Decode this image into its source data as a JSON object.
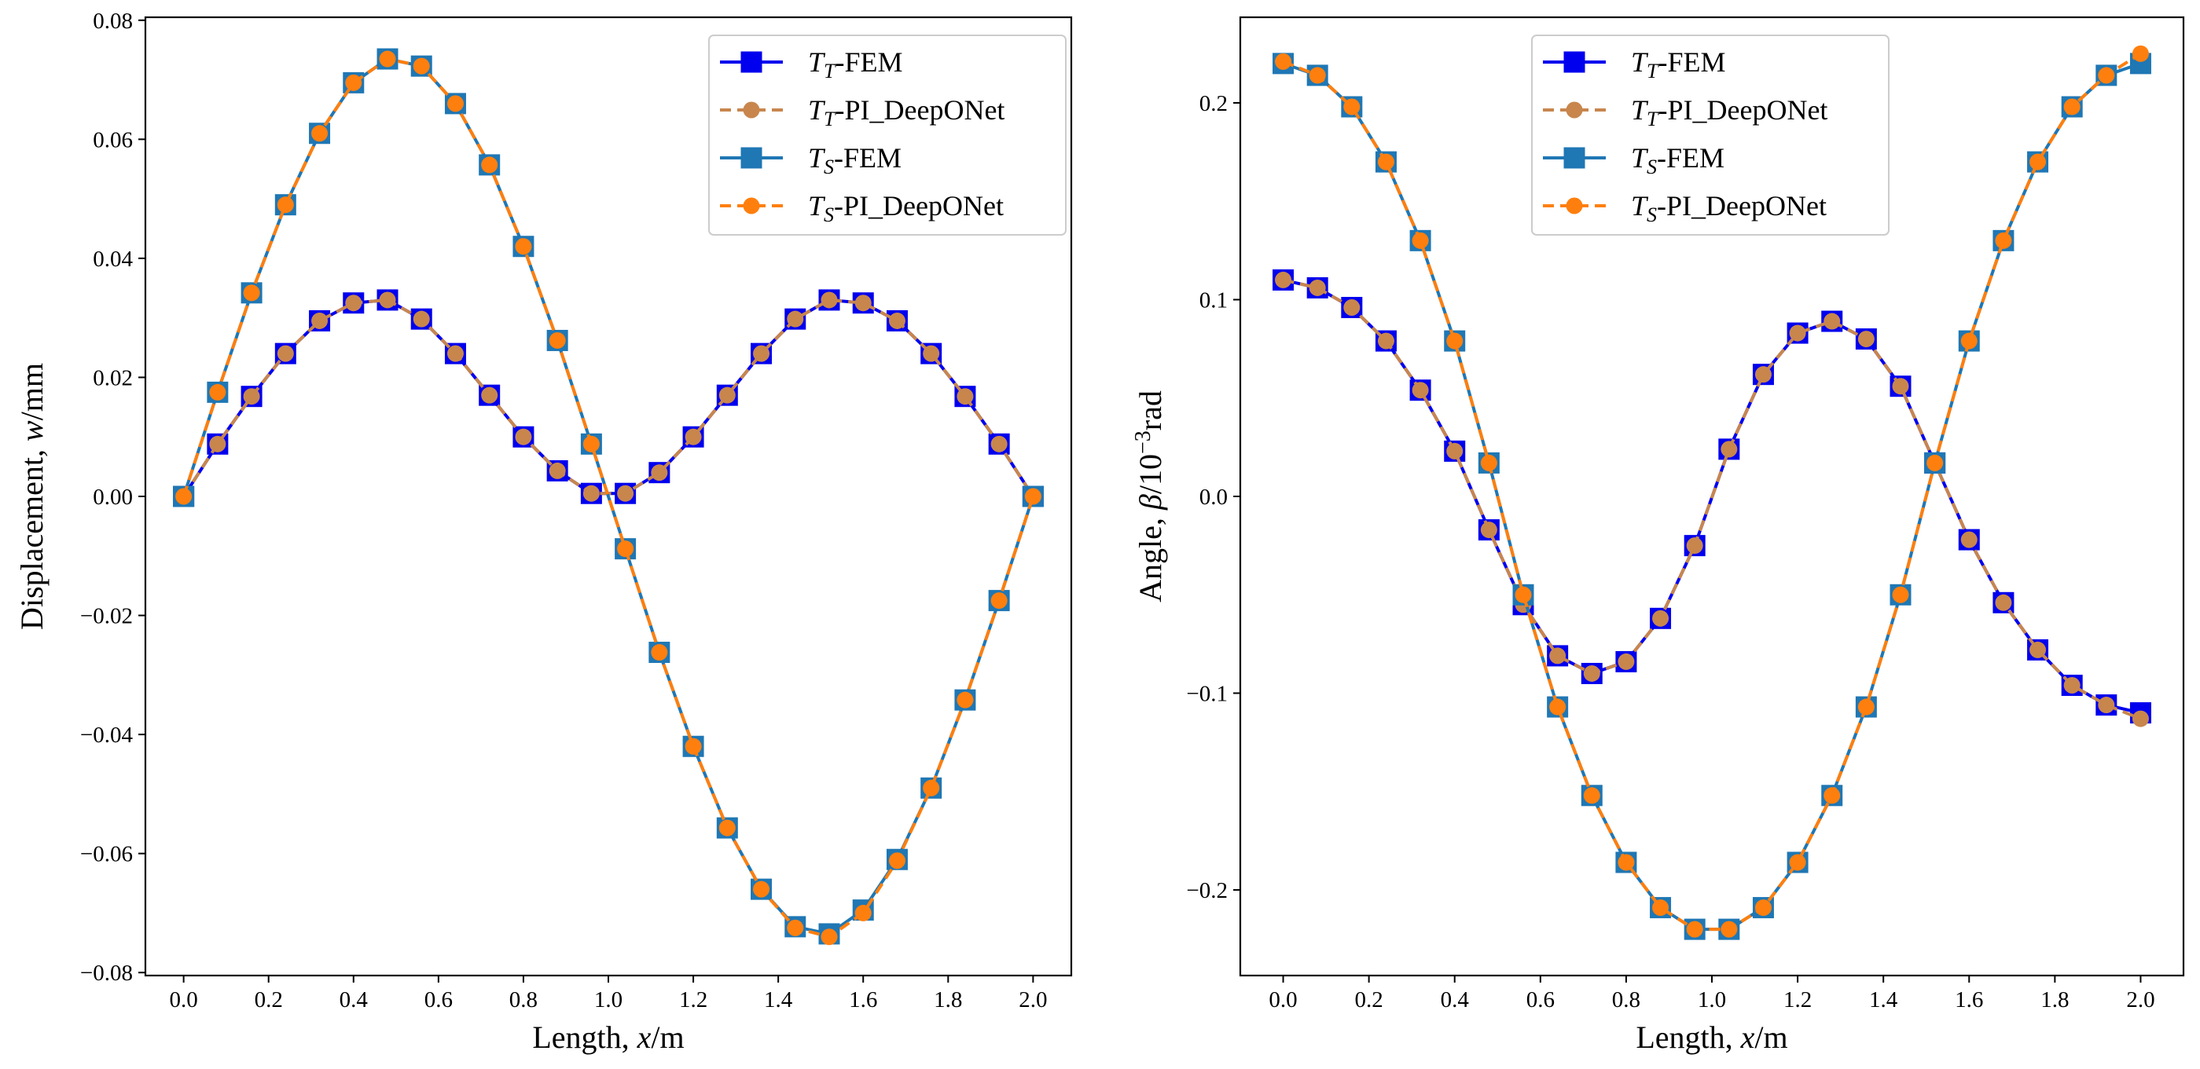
{
  "colors": {
    "tt_fem": "#0000ee",
    "tt_pi": "#c8864d",
    "ts_fem": "#1f77b4",
    "ts_pi": "#ff7f0e"
  },
  "legend_labels": [
    {
      "symbol": "T",
      "sub": "T",
      "suffix": "-FEM"
    },
    {
      "symbol": "T",
      "sub": "T",
      "suffix": "-PI_DeepONet"
    },
    {
      "symbol": "T",
      "sub": "S",
      "suffix": "-FEM"
    },
    {
      "symbol": "T",
      "sub": "S",
      "suffix": "-PI_DeepONet"
    }
  ],
  "chart_data": [
    {
      "type": "line",
      "xlabel": "Length, x/m",
      "xlabel_parts": {
        "pre": "Length, ",
        "var": "x",
        "post": "/m"
      },
      "ylabel": "Displacement, w/mm",
      "ylabel_parts": {
        "pre": "Displacement, ",
        "var": "w",
        "post": "/mm"
      },
      "xlim": [
        -0.09,
        2.09
      ],
      "ylim": [
        -0.0805,
        0.0805
      ],
      "xticks": [
        0.0,
        0.2,
        0.4,
        0.6,
        0.8,
        1.0,
        1.2,
        1.4,
        1.6,
        1.8,
        2.0
      ],
      "xtick_labels": [
        "0.0",
        "0.2",
        "0.4",
        "0.6",
        "0.8",
        "1.0",
        "1.2",
        "1.4",
        "1.6",
        "1.8",
        "2.0"
      ],
      "yticks": [
        -0.08,
        -0.06,
        -0.04,
        -0.02,
        0.0,
        0.02,
        0.04,
        0.06,
        0.08
      ],
      "ytick_labels": [
        "−0.08",
        "−0.06",
        "−0.04",
        "−0.02",
        "0.00",
        "0.02",
        "0.04",
        "0.06",
        "0.08"
      ],
      "legend_position": "top-right",
      "x": [
        0.0,
        0.08,
        0.16,
        0.24,
        0.32,
        0.4,
        0.48,
        0.56,
        0.64,
        0.72,
        0.8,
        0.88,
        0.96,
        1.04,
        1.12,
        1.2,
        1.28,
        1.36,
        1.44,
        1.52,
        1.6,
        1.68,
        1.76,
        1.84,
        1.92,
        2.0
      ],
      "series": [
        {
          "name": "T_T-FEM",
          "values": [
            0.0,
            0.0088,
            0.0168,
            0.024,
            0.0295,
            0.0325,
            0.033,
            0.0298,
            0.024,
            0.017,
            0.01,
            0.0043,
            0.0005,
            0.0005,
            0.004,
            0.01,
            0.017,
            0.024,
            0.0298,
            0.033,
            0.0325,
            0.0295,
            0.024,
            0.0168,
            0.0088,
            0.0
          ]
        },
        {
          "name": "T_T-PI_DeepONet",
          "values": [
            0.0,
            0.0088,
            0.0168,
            0.024,
            0.0295,
            0.0325,
            0.033,
            0.0298,
            0.024,
            0.017,
            0.01,
            0.0043,
            0.0005,
            0.0005,
            0.004,
            0.01,
            0.017,
            0.024,
            0.0298,
            0.033,
            0.0325,
            0.0295,
            0.024,
            0.0168,
            0.0088,
            0.0
          ]
        },
        {
          "name": "T_S-FEM",
          "values": [
            0.0,
            0.0175,
            0.0342,
            0.049,
            0.061,
            0.0695,
            0.0735,
            0.0723,
            0.066,
            0.0557,
            0.042,
            0.0262,
            0.0088,
            -0.0088,
            -0.0262,
            -0.042,
            -0.0557,
            -0.066,
            -0.0723,
            -0.0735,
            -0.0695,
            -0.061,
            -0.049,
            -0.0342,
            -0.0175,
            0.0
          ]
        },
        {
          "name": "T_S-PI_DeepONet",
          "values": [
            0.0,
            0.0175,
            0.0342,
            0.049,
            0.061,
            0.0695,
            0.0735,
            0.0723,
            0.066,
            0.0557,
            0.042,
            0.0262,
            0.0088,
            -0.0088,
            -0.0262,
            -0.042,
            -0.0557,
            -0.066,
            -0.0725,
            -0.074,
            -0.07,
            -0.0612,
            -0.049,
            -0.0342,
            -0.0175,
            0.0
          ]
        }
      ]
    },
    {
      "type": "line",
      "xlabel": "Length, x/m",
      "xlabel_parts": {
        "pre": "Length, ",
        "var": "x",
        "post": "/m"
      },
      "ylabel": "Angle, β/10⁻³rad",
      "ylabel_parts": {
        "pre": "Angle, ",
        "var": "β",
        "mid": "/10",
        "sup": "−3",
        "post": "rad"
      },
      "xlim": [
        -0.1,
        2.1
      ],
      "ylim": [
        -0.2435,
        0.2435
      ],
      "xticks": [
        0.0,
        0.2,
        0.4,
        0.6,
        0.8,
        1.0,
        1.2,
        1.4,
        1.6,
        1.8,
        2.0
      ],
      "xtick_labels": [
        "0.0",
        "0.2",
        "0.4",
        "0.6",
        "0.8",
        "1.0",
        "1.2",
        "1.4",
        "1.6",
        "1.8",
        "2.0"
      ],
      "yticks": [
        -0.2,
        -0.1,
        0.0,
        0.1,
        0.2
      ],
      "ytick_labels": [
        "−0.2",
        "−0.1",
        "0.0",
        "0.1",
        "0.2"
      ],
      "legend_position": "top-center",
      "x": [
        0.0,
        0.08,
        0.16,
        0.24,
        0.32,
        0.4,
        0.48,
        0.56,
        0.64,
        0.72,
        0.8,
        0.88,
        0.96,
        1.04,
        1.12,
        1.2,
        1.28,
        1.36,
        1.44,
        1.52,
        1.6,
        1.68,
        1.76,
        1.84,
        1.92,
        2.0
      ],
      "series": [
        {
          "name": "T_T-FEM",
          "values": [
            0.11,
            0.106,
            0.096,
            0.079,
            0.054,
            0.023,
            -0.017,
            -0.055,
            -0.081,
            -0.09,
            -0.084,
            -0.062,
            -0.025,
            0.024,
            0.062,
            0.083,
            0.089,
            0.08,
            0.056,
            0.017,
            -0.022,
            -0.054,
            -0.078,
            -0.096,
            -0.106,
            -0.11
          ]
        },
        {
          "name": "T_T-PI_DeepONet",
          "values": [
            0.11,
            0.106,
            0.096,
            0.079,
            0.054,
            0.023,
            -0.017,
            -0.055,
            -0.081,
            -0.09,
            -0.084,
            -0.062,
            -0.025,
            0.024,
            0.062,
            0.083,
            0.089,
            0.08,
            0.056,
            0.017,
            -0.022,
            -0.054,
            -0.078,
            -0.096,
            -0.106,
            -0.113
          ]
        },
        {
          "name": "T_S-FEM",
          "values": [
            0.22,
            0.214,
            0.198,
            0.17,
            0.13,
            0.079,
            0.017,
            -0.05,
            -0.107,
            -0.152,
            -0.186,
            -0.209,
            -0.22,
            -0.22,
            -0.209,
            -0.186,
            -0.152,
            -0.107,
            -0.05,
            0.017,
            0.079,
            0.13,
            0.17,
            0.198,
            0.214,
            0.22
          ]
        },
        {
          "name": "T_S-PI_DeepONet",
          "values": [
            0.221,
            0.214,
            0.198,
            0.17,
            0.13,
            0.079,
            0.017,
            -0.05,
            -0.107,
            -0.152,
            -0.186,
            -0.209,
            -0.22,
            -0.22,
            -0.209,
            -0.186,
            -0.152,
            -0.107,
            -0.05,
            0.017,
            0.079,
            0.13,
            0.17,
            0.198,
            0.214,
            0.225
          ]
        }
      ]
    }
  ]
}
